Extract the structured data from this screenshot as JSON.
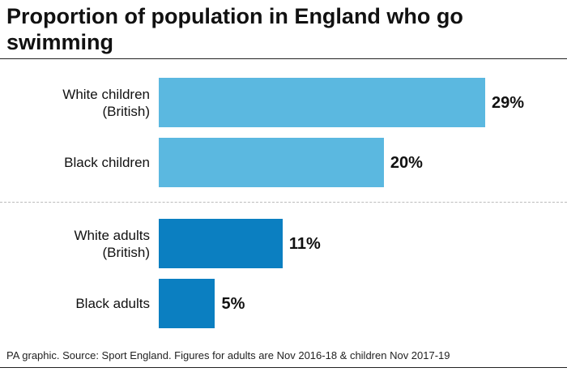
{
  "chart_data": {
    "type": "bar",
    "title": "Proportion of population in England who go swimming",
    "categories": [
      "White children\n(British)",
      "Black children",
      "White adults\n(British)",
      "Black adults"
    ],
    "values": [
      29,
      20,
      11,
      5
    ],
    "value_labels": [
      "29%",
      "20%",
      "11%",
      "5%"
    ],
    "colors": [
      "#5bb8e0",
      "#5bb8e0",
      "#0b7fc1",
      "#0b7fc1"
    ],
    "source": "PA graphic. Source: Sport England. Figures for adults are Nov 2016-18 & children Nov 2017-19"
  }
}
